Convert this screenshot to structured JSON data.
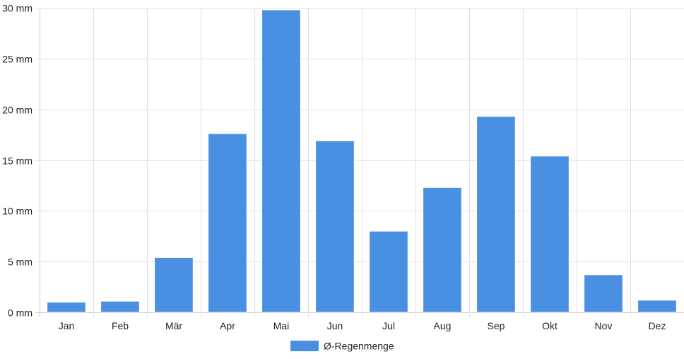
{
  "chart_data": {
    "type": "bar",
    "categories": [
      "Jan",
      "Feb",
      "Mär",
      "Apr",
      "Mai",
      "Jun",
      "Jul",
      "Aug",
      "Sep",
      "Okt",
      "Nov",
      "Dez"
    ],
    "series": [
      {
        "name": "Ø-Regenmenge",
        "values": [
          1.0,
          1.1,
          5.4,
          17.6,
          29.8,
          16.9,
          8.0,
          12.3,
          19.3,
          15.4,
          3.7,
          1.2
        ],
        "color": "#4a90e2"
      }
    ],
    "y_ticks": [
      "0 mm",
      "5 mm",
      "10 mm",
      "15 mm",
      "20 mm",
      "25 mm",
      "30 mm"
    ],
    "ylim": [
      0,
      30
    ],
    "y_step": 5,
    "grid": true,
    "legend_position": "bottom-center",
    "colors": {
      "grid": "#e0e0e0",
      "axis": "#cccccc",
      "bar": "#4a90e2",
      "text": "#222222"
    }
  }
}
